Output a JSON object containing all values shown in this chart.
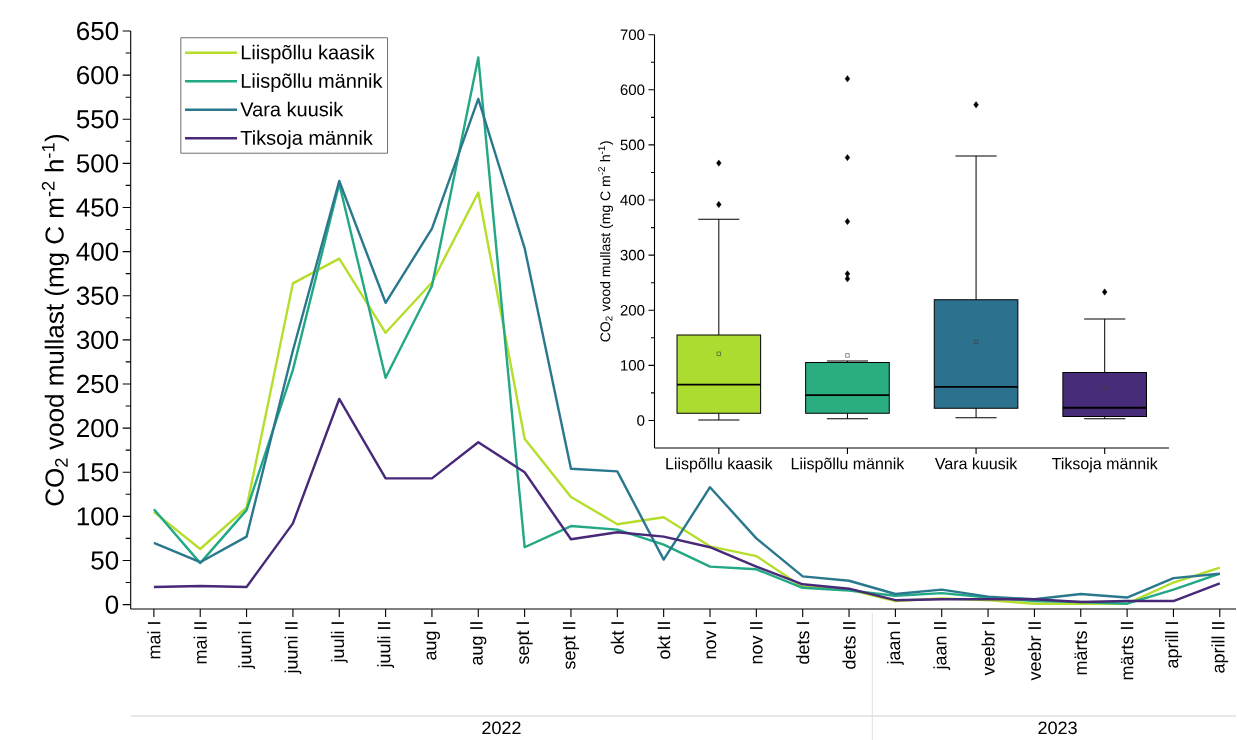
{
  "chart_data": [
    {
      "type": "line",
      "ylabel": "CO$_{2}$ vood mullast (mg C m$^{-2}$ h$^{-1}$)",
      "categories": [
        "mai I",
        "mai II",
        "juuni I",
        "juuni II",
        "juuli I",
        "juuli II",
        "aug I",
        "aug II",
        "sept I",
        "sept II",
        "okt I",
        "okt II",
        "nov I",
        "nov II",
        "dets I",
        "dets II",
        "jaan I",
        "jaan II",
        "veebr I",
        "veebr II",
        "märts I",
        "märts II",
        "aprill I",
        "aprill II"
      ],
      "series": [
        {
          "name": "Liispõllu kaasik",
          "color": "#b5de2b",
          "values": [
            105,
            63,
            110,
            364,
            392,
            308,
            365,
            467,
            188,
            122,
            91,
            99,
            66,
            55,
            20,
            17,
            4,
            7,
            5,
            1,
            1,
            1,
            25,
            42
          ]
        },
        {
          "name": "Liispõllu männik",
          "color": "#22a884",
          "values": [
            108,
            47,
            107,
            266,
            477,
            257,
            361,
            620,
            65,
            89,
            85,
            68,
            43,
            40,
            19,
            16,
            10,
            13,
            8,
            4,
            3,
            1,
            17,
            35
          ]
        },
        {
          "name": "Vara kuusik",
          "color": "#2a788e",
          "values": [
            70,
            48,
            77,
            288,
            480,
            342,
            426,
            573,
            404,
            154,
            151,
            51,
            133,
            75,
            32,
            27,
            12,
            17,
            9,
            6,
            12,
            8,
            30,
            35
          ]
        },
        {
          "name": "Tiksoja männik",
          "color": "#482878",
          "values": [
            20,
            21,
            20,
            92,
            233,
            143,
            143,
            184,
            150,
            74,
            82,
            77,
            65,
            43,
            23,
            18,
            5,
            6,
            6,
            6,
            3,
            4,
            4,
            24
          ]
        }
      ],
      "ylim": [
        -5,
        650
      ],
      "yticks": [
        0,
        50,
        100,
        150,
        200,
        250,
        300,
        350,
        400,
        450,
        500,
        550,
        600,
        650
      ],
      "legend": "top left",
      "annotations": [
        "2022",
        "2023"
      ]
    },
    {
      "type": "box",
      "ylabel": "CO$_{2}$ vood mullast (mg C m$^{-2}$ h$^{-1}$)",
      "categories": [
        "Liispõllu kaasik",
        "Liispõllu männik",
        "Vara kuusik",
        "Tiksoja männik"
      ],
      "colors": [
        "#addc30",
        "#2aae80",
        "#2c728e",
        "#472c7a"
      ],
      "boxes": [
        {
          "low": 1,
          "q1": 13,
          "median": 65,
          "q3": 155,
          "high": 365,
          "mean": 121,
          "outliers": [
            392,
            467
          ]
        },
        {
          "low": 3,
          "q1": 13,
          "median": 46,
          "q3": 105,
          "high": 108,
          "mean": 118,
          "outliers": [
            257,
            266,
            361,
            477,
            620
          ]
        },
        {
          "low": 5,
          "q1": 22,
          "median": 61,
          "q3": 219,
          "high": 480,
          "mean": 143,
          "outliers": [
            573
          ]
        },
        {
          "low": 3,
          "q1": 7,
          "median": 23,
          "q3": 87,
          "high": 184,
          "mean": 59,
          "outliers": [
            233
          ]
        }
      ],
      "ylim": [
        -50,
        700
      ],
      "yticks": [
        0,
        100,
        200,
        300,
        400,
        500,
        600,
        700
      ]
    }
  ]
}
